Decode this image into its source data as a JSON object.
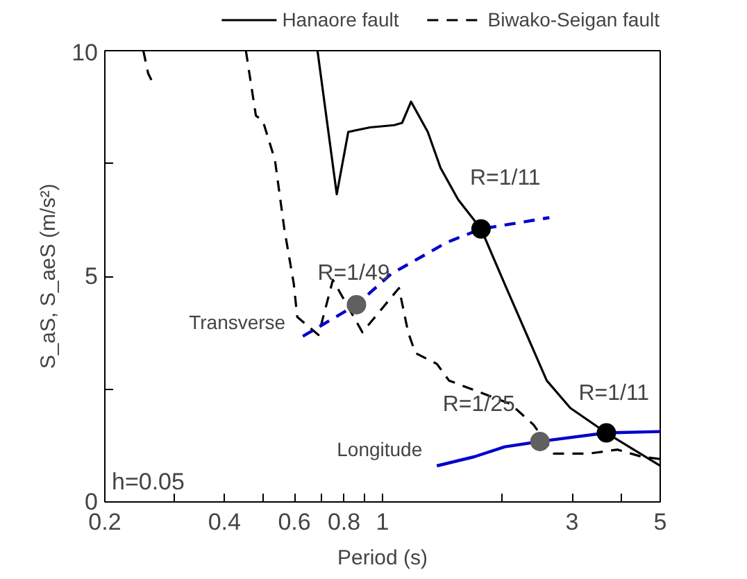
{
  "chart_data": {
    "type": "line",
    "xlabel": "Period (s)",
    "ylabel": "S_aS, S_aeS (m/s²)",
    "log": "x",
    "xlim": [
      0.2,
      5
    ],
    "ylim": [
      0,
      10
    ],
    "xticks": [
      0.2,
      {
        "value": 0.3,
        "label": null
      },
      0.4,
      {
        "value": 0.5,
        "label": null
      },
      0.6,
      {
        "value": 0.7,
        "label": null
      },
      0.8,
      {
        "value": 0.9,
        "label": null
      },
      1,
      {
        "value": 2,
        "label": null
      },
      3,
      {
        "value": 4,
        "label": null
      },
      5
    ],
    "yticks": [
      0,
      {
        "value": 2.5,
        "label": null
      },
      5,
      {
        "value": 7.5,
        "label": null
      },
      10
    ],
    "grid": false,
    "legend": "top",
    "series": [
      {
        "name": "Hanaore fault",
        "type": "line",
        "line_style": "solid",
        "color": "#000000",
        "x": [
          0.686,
          0.767,
          0.82,
          0.93,
          1.07,
          1.12,
          1.18,
          1.3,
          1.4,
          1.55,
          1.77,
          2.03,
          2.59,
          2.97,
          3.66,
          5
        ],
        "values": [
          10,
          6.82,
          8.2,
          8.3,
          8.35,
          8.4,
          8.87,
          8.2,
          7.4,
          6.7,
          6.05,
          4.83,
          2.69,
          2.08,
          1.53,
          0.8
        ]
      },
      {
        "name": "Biwako-Seigan fault",
        "type": "line",
        "line_style": "dashed",
        "color": "#000000",
        "x": [
          0.25,
          0.257,
          0.262,
          0.3,
          0.453,
          0.48,
          0.5,
          0.536,
          0.566,
          0.598,
          0.61,
          0.69,
          0.75,
          0.89,
          1.1,
          1.16,
          1.21,
          1.37,
          1.47,
          2.1,
          2.4,
          2.7,
          3.3,
          3.9,
          4.5,
          5
        ],
        "values": [
          10,
          9.5,
          9.35,
          null,
          10,
          8.56,
          8.44,
          7.58,
          6.05,
          4.83,
          4.1,
          3.7,
          4.92,
          3.76,
          4.74,
          3.76,
          3.3,
          3.06,
          2.69,
          2.17,
          1.71,
          1.07,
          1.07,
          1.16,
          1.0,
          0.95
        ]
      },
      {
        "type": "line",
        "line_style": "dashed",
        "color": "#0000cc",
        "x": [
          0.63,
          0.86,
          1.05,
          1.45,
          1.77,
          2.63
        ],
        "values": [
          3.67,
          4.37,
          5.05,
          5.75,
          6.05,
          6.3
        ]
      },
      {
        "type": "line",
        "line_style": "solid",
        "color": "#0000cc",
        "x": [
          1.37,
          1.7,
          2.03,
          2.49,
          3.66,
          5
        ],
        "values": [
          0.8,
          1.0,
          1.22,
          1.34,
          1.53,
          1.56
        ]
      },
      {
        "type": "scatter",
        "marker": "circle",
        "colors": [
          "#606060",
          "#000000",
          "#606060",
          "#000000"
        ],
        "x": [
          0.86,
          1.77,
          2.49,
          3.66
        ],
        "values": [
          4.37,
          6.05,
          1.34,
          1.53
        ]
      }
    ],
    "annotations": [
      {
        "text": "R=1/49",
        "x": 0.86,
        "y": 4.37
      },
      {
        "text": "R=1/11",
        "x": 1.77,
        "y": 6.05
      },
      {
        "text": "R=1/25",
        "x": 2.49,
        "y": 1.34
      },
      {
        "text": "R=1/11",
        "x": 3.66,
        "y": 1.53
      },
      {
        "text": "Transverse",
        "x": 0.63,
        "y": 3.67
      },
      {
        "text": "Longitude",
        "x": 1.37,
        "y": 0.8
      },
      "h=0.05"
    ]
  }
}
